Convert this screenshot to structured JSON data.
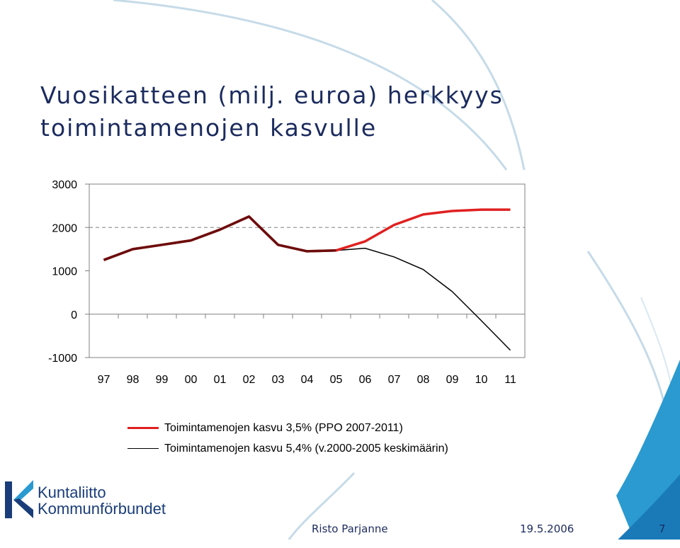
{
  "title": {
    "line1": "Vuosikatteen (milj. euroa) herkkyys",
    "line2": "toimintamenojen kasvulle"
  },
  "chart_data": {
    "type": "line",
    "title": "",
    "xlabel": "",
    "ylabel": "",
    "categories": [
      "97",
      "98",
      "99",
      "00",
      "01",
      "02",
      "03",
      "04",
      "05",
      "06",
      "07",
      "08",
      "09",
      "10",
      "11"
    ],
    "ylim": [
      -1000,
      3000
    ],
    "yticks": [
      3000,
      2000,
      1000,
      0,
      -1000
    ],
    "gridlines": [
      2000
    ],
    "legend_position": "bottom",
    "series": [
      {
        "name": "Toimintamenojen kasvu 3,5% (PPO 2007-2011)",
        "color": "#e02020",
        "values": [
          1250,
          1500,
          1600,
          1700,
          1950,
          2250,
          1600,
          1450,
          1470,
          1680,
          2060,
          2300,
          2380,
          2410,
          2410
        ]
      },
      {
        "name": "Toimintamenojen kasvu 5,4% (v.2000-2005 keskimäärin)",
        "color": "#000000",
        "values": [
          1250,
          1500,
          1600,
          1700,
          1950,
          2250,
          1600,
          1450,
          1470,
          1520,
          1320,
          1030,
          520,
          -150,
          -830
        ]
      }
    ],
    "overlap_color": "#6b0d0d",
    "overlap_until_index": 8
  },
  "logo": {
    "line1": "Kuntaliitto",
    "line2": "Kommunförbundet"
  },
  "footer": {
    "author": "Risto Parjanne",
    "date": "19.5.2006",
    "page": "7"
  }
}
